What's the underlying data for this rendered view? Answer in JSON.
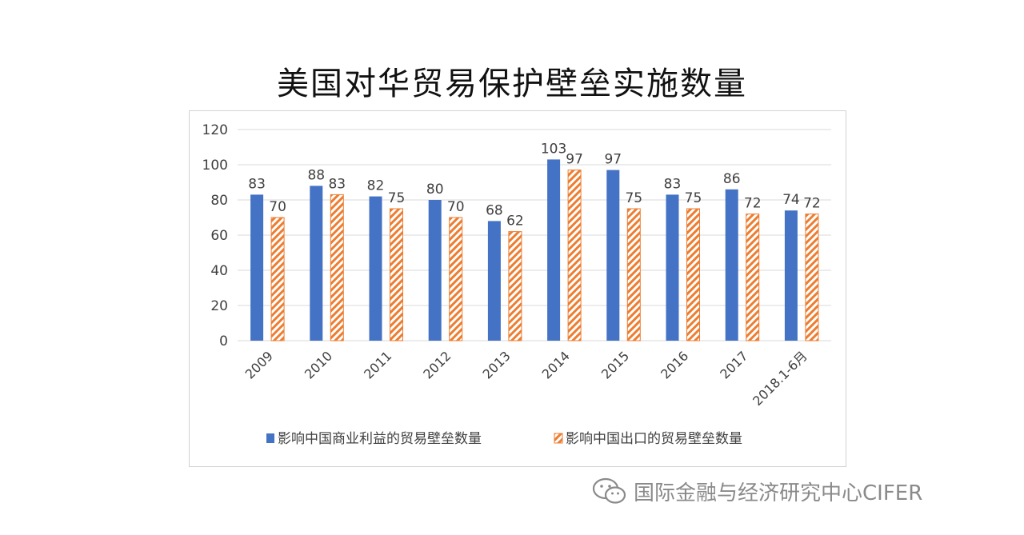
{
  "title": "美国对华贸易保护壁垒实施数量",
  "watermark": "国际金融与经济研究中心CIFER",
  "watermark_icon": "wechat-icon",
  "colors": {
    "series1": "#4472c4",
    "series2": "#ed7d31",
    "grid": "#d9d9d9",
    "text": "#404040"
  },
  "chart_data": {
    "type": "bar",
    "categories": [
      "2009",
      "2010",
      "2011",
      "2012",
      "2013",
      "2014",
      "2015",
      "2016",
      "2017",
      "2018.1-6月"
    ],
    "series": [
      {
        "name": "影响中国商业利益的贸易壁垒数量",
        "values": [
          83,
          88,
          82,
          80,
          68,
          103,
          97,
          83,
          86,
          74
        ],
        "fill": "solid"
      },
      {
        "name": "影响中国出口的贸易壁垒数量",
        "values": [
          70,
          83,
          75,
          70,
          62,
          97,
          75,
          75,
          72,
          72
        ],
        "fill": "hatched"
      }
    ],
    "ylim": [
      0,
      120
    ],
    "yticks": [
      0,
      20,
      40,
      60,
      80,
      100,
      120
    ],
    "grid": true,
    "legend": "bottom",
    "data_labels": true
  }
}
